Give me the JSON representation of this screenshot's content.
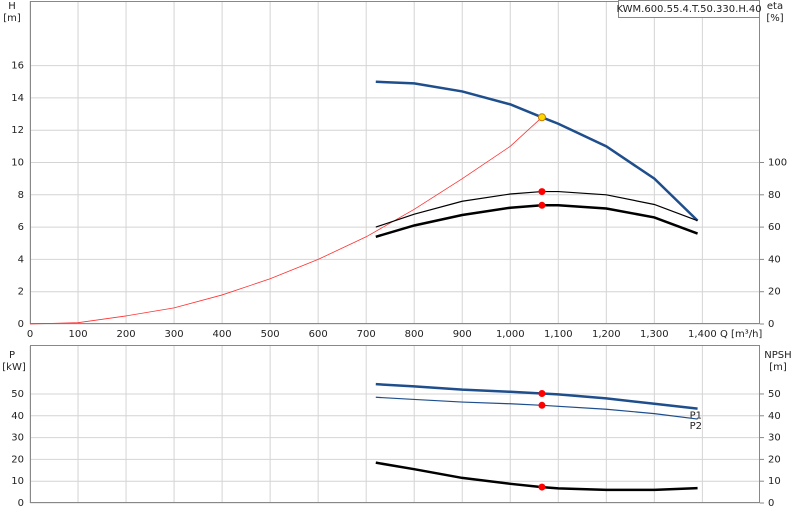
{
  "chart_data": [
    {
      "type": "line",
      "x_label": "Q [m³/h]",
      "y_label": "H",
      "y_unit": "[m]",
      "y2_label": "eta",
      "y2_unit": "[%]",
      "pump_name": "KWM.600.55.4.T.50.330.H.40",
      "xlim": [
        0,
        1520
      ],
      "xticks": [
        0,
        100,
        200,
        300,
        400,
        500,
        600,
        700,
        800,
        900,
        {
          "value": 1000,
          "label": "1,000"
        },
        {
          "value": 1100,
          "label": "1,100"
        },
        {
          "value": 1200,
          "label": "1,200"
        },
        {
          "value": 1300,
          "label": "1,300"
        },
        {
          "value": 1400,
          "label": "1,400"
        }
      ],
      "ylim": [
        0,
        20
      ],
      "yticks": [
        0,
        2,
        4,
        6,
        8,
        10,
        12,
        14,
        16
      ],
      "y2lim": [
        0,
        200
      ],
      "y2ticks": [
        0,
        20,
        40,
        60,
        80,
        100
      ],
      "grid": true,
      "series": [
        {
          "color": "#ff3030",
          "line_width": 0.8,
          "x": [
            0,
            100,
            200,
            300,
            400,
            500,
            600,
            700,
            800,
            900,
            1000,
            1066
          ],
          "values": [
            0,
            0.08,
            0.5,
            1.0,
            1.8,
            2.8,
            4.0,
            5.4,
            7.1,
            9.0,
            11.0,
            12.8
          ]
        },
        {
          "color": "#1f4e8c",
          "line_width": 2.5,
          "x": [
            720,
            800,
            900,
            1000,
            1066,
            1100,
            1200,
            1300,
            1390
          ],
          "values": [
            15.0,
            14.9,
            14.4,
            13.6,
            12.8,
            12.4,
            11.0,
            9.0,
            6.4
          ],
          "marker": {
            "x": 1066,
            "y": 12.8,
            "color": "#ffd700"
          }
        },
        {
          "axis": "y2",
          "color": "#000000",
          "line_width": 1.2,
          "x": [
            720,
            800,
            900,
            1000,
            1066,
            1100,
            1200,
            1300,
            1390
          ],
          "values": [
            60,
            68,
            76,
            80.5,
            82,
            82,
            80,
            74,
            64
          ],
          "marker": {
            "x": 1066,
            "y": 82,
            "color": "#ff0000"
          }
        },
        {
          "axis": "y2",
          "color": "#000000",
          "line_width": 2.5,
          "x": [
            720,
            800,
            900,
            1000,
            1066,
            1100,
            1200,
            1300,
            1390
          ],
          "values": [
            54,
            61,
            67.5,
            72,
            73.5,
            73.5,
            71.5,
            66,
            56
          ],
          "marker": {
            "x": 1066,
            "y": 73.5,
            "color": "#ff0000"
          }
        }
      ]
    },
    {
      "type": "line",
      "y_label": "P",
      "y_unit": "[kW]",
      "y2_label": "NPSH",
      "y2_unit": "[m]",
      "xlim": [
        0,
        1520
      ],
      "ylim": [
        0,
        72
      ],
      "yticks": [
        0,
        10,
        20,
        30,
        40,
        50
      ],
      "y2lim": [
        0,
        72
      ],
      "y2ticks": [
        0,
        10,
        20,
        30,
        40,
        50
      ],
      "grid": true,
      "series": [
        {
          "name": "P1",
          "color": "#1f4e8c",
          "line_width": 2.5,
          "x": [
            720,
            800,
            900,
            1000,
            1066,
            1100,
            1200,
            1300,
            1390
          ],
          "values": [
            54.5,
            53.5,
            52,
            51,
            50.2,
            49.8,
            48,
            45.5,
            43.3
          ],
          "marker": {
            "x": 1066,
            "y": 50.2,
            "color": "#ff0000"
          }
        },
        {
          "name": "P2",
          "color": "#1f4e8c",
          "line_width": 1.2,
          "x": [
            720,
            800,
            900,
            1000,
            1066,
            1200,
            1300,
            1390
          ],
          "values": [
            48.5,
            47.5,
            46.3,
            45.5,
            44.8,
            43,
            41,
            38.5
          ],
          "marker": {
            "x": 1066,
            "y": 44.8,
            "color": "#ff0000"
          }
        },
        {
          "axis": "y2",
          "color": "#000000",
          "line_width": 2.5,
          "x": [
            720,
            800,
            900,
            1000,
            1066,
            1100,
            1200,
            1300,
            1390
          ],
          "values": [
            18.5,
            15.5,
            11.5,
            8.8,
            7.3,
            6.7,
            6.0,
            6.0,
            6.8
          ],
          "marker": {
            "x": 1066,
            "y": 7.3,
            "color": "#ff0000"
          }
        }
      ]
    }
  ]
}
